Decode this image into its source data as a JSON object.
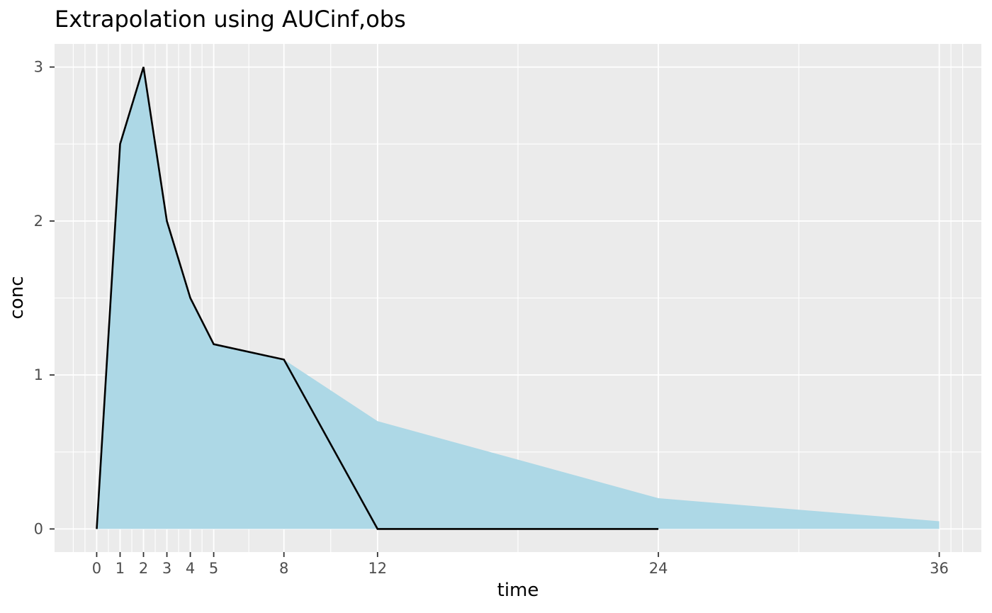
{
  "chart_data": {
    "type": "area",
    "title": "Extrapolation using AUCinf,obs",
    "xlabel": "time",
    "ylabel": "conc",
    "xlim": [
      -1.8,
      37.8
    ],
    "ylim": [
      -0.15,
      3.15
    ],
    "x_breaks": [
      0,
      1,
      2,
      3,
      4,
      5,
      8,
      12,
      24,
      36
    ],
    "x_tick_labels": [
      "0",
      "1",
      "2",
      "3",
      "4",
      "5",
      "8",
      "12",
      "24",
      "36"
    ],
    "x_minor_breaks": [
      -1,
      -0.5,
      0.5,
      1.5,
      2.5,
      3.5,
      4.5,
      6.5,
      10,
      18,
      30,
      36.5,
      37
    ],
    "y_breaks": [
      0,
      1,
      2,
      3
    ],
    "y_tick_labels": [
      "0",
      "1",
      "2",
      "3"
    ],
    "y_minor_breaks": [
      0.5,
      1.5,
      2.5
    ],
    "grid": true,
    "legend": "none",
    "series": [
      {
        "name": "auc-extrapolated-area",
        "type": "area",
        "fill": "#ADD8E6",
        "points": [
          [
            0,
            0
          ],
          [
            1,
            2.5
          ],
          [
            2,
            3
          ],
          [
            3,
            2
          ],
          [
            4,
            1.5
          ],
          [
            5,
            1.2
          ],
          [
            8,
            1.1
          ],
          [
            12,
            0.7
          ],
          [
            24,
            0.2
          ],
          [
            36,
            0.05
          ],
          [
            36,
            0
          ],
          [
            0,
            0
          ]
        ]
      },
      {
        "name": "observed-conc-line",
        "type": "line",
        "color": "#000000",
        "points": [
          [
            0,
            0
          ],
          [
            1,
            2.5
          ],
          [
            2,
            3
          ],
          [
            3,
            2
          ],
          [
            4,
            1.5
          ],
          [
            5,
            1.2
          ],
          [
            8,
            1.1
          ],
          [
            12,
            0
          ],
          [
            24,
            0
          ]
        ]
      }
    ],
    "colors": {
      "page_bg": "#FFFFFF",
      "panel_bg": "#EBEBEB",
      "grid_line": "#FFFFFF",
      "area_fill": "#ADD8E6",
      "line": "#000000",
      "tick_mark": "#333333",
      "tick_text": "#4D4D4D",
      "axis_title_text": "#000000",
      "title_text": "#000000"
    }
  }
}
